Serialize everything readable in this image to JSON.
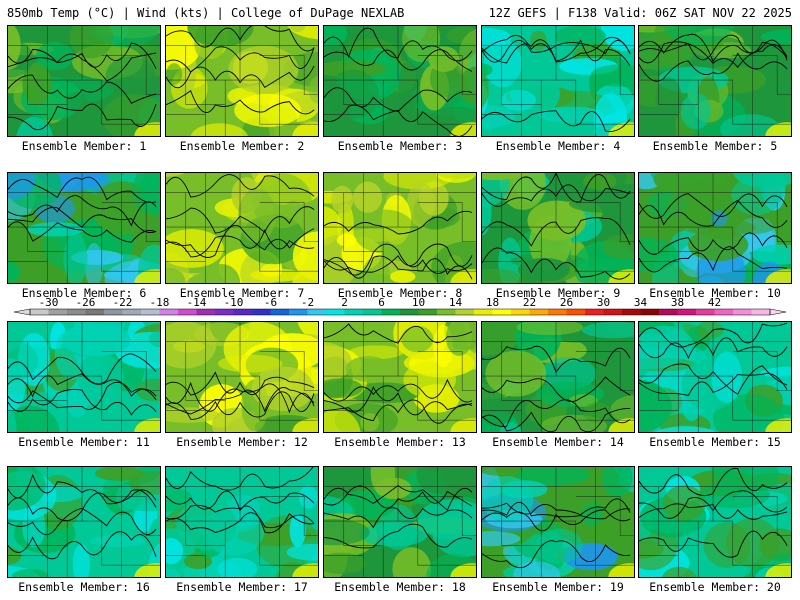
{
  "header": {
    "left": "850mb Temp (°C) | Wind (kts) | College of DuPage NEXLAB",
    "right": "12Z GEFS | F138 Valid: 06Z SAT NOV 22 2025"
  },
  "member_label_prefix": "Ensemble Member: ",
  "members": [
    {
      "id": 1,
      "label": "Ensemble Member: 1",
      "scheme": "green"
    },
    {
      "id": 2,
      "label": "Ensemble Member: 2",
      "scheme": "yellow"
    },
    {
      "id": 3,
      "label": "Ensemble Member: 3",
      "scheme": "green"
    },
    {
      "id": 4,
      "label": "Ensemble Member: 4",
      "scheme": "teal"
    },
    {
      "id": 5,
      "label": "Ensemble Member: 5",
      "scheme": "green"
    },
    {
      "id": 6,
      "label": "Ensemble Member: 6",
      "scheme": "cold"
    },
    {
      "id": 7,
      "label": "Ensemble Member: 7",
      "scheme": "yellow"
    },
    {
      "id": 8,
      "label": "Ensemble Member: 8",
      "scheme": "yellow"
    },
    {
      "id": 9,
      "label": "Ensemble Member: 9",
      "scheme": "green"
    },
    {
      "id": 10,
      "label": "Ensemble Member: 10",
      "scheme": "cold"
    },
    {
      "id": 11,
      "label": "Ensemble Member: 11",
      "scheme": "teal"
    },
    {
      "id": 12,
      "label": "Ensemble Member: 12",
      "scheme": "yellow"
    },
    {
      "id": 13,
      "label": "Ensemble Member: 13",
      "scheme": "yellow"
    },
    {
      "id": 14,
      "label": "Ensemble Member: 14",
      "scheme": "green"
    },
    {
      "id": 15,
      "label": "Ensemble Member: 15",
      "scheme": "teal"
    },
    {
      "id": 16,
      "label": "Ensemble Member: 16",
      "scheme": "teal"
    },
    {
      "id": 17,
      "label": "Ensemble Member: 17",
      "scheme": "teal"
    },
    {
      "id": 18,
      "label": "Ensemble Member: 18",
      "scheme": "green"
    },
    {
      "id": 19,
      "label": "Ensemble Member: 19",
      "scheme": "cold"
    },
    {
      "id": 20,
      "label": "Ensemble Member: 20",
      "scheme": "teal"
    }
  ],
  "colorbar": {
    "ticks": [
      "-30",
      "-26",
      "-22",
      "-18",
      "-14",
      "-10",
      "-6",
      "-2",
      "2",
      "6",
      "10",
      "14",
      "18",
      "22",
      "26",
      "30",
      "34",
      "38",
      "42"
    ],
    "colors": [
      "#c8c8c8",
      "#a0a0a0",
      "#8c8c8c",
      "#787878",
      "#8c96a0",
      "#a0aab4",
      "#b4bed2",
      "#d282e6",
      "#d24bd2",
      "#a02db4",
      "#7a2cc8",
      "#5a28c8",
      "#3232c8",
      "#1464dc",
      "#1e96f0",
      "#32c8f0",
      "#00e6e6",
      "#00d2b4",
      "#00c896",
      "#00b45a",
      "#1e963c",
      "#3ca028",
      "#78be28",
      "#b4d228",
      "#e6f000",
      "#ffff00",
      "#ffd700",
      "#ffaa00",
      "#ff7800",
      "#ff5000",
      "#f01e1e",
      "#d21414",
      "#aa0a0a",
      "#8c0505",
      "#b40a5a",
      "#d2147d",
      "#e63ca0",
      "#f064c8",
      "#f58cdc",
      "#fab4e6"
    ]
  },
  "schemes": {
    "green": [
      "#1e963c",
      "#3ca028",
      "#00b45a",
      "#78be28",
      "#00c896"
    ],
    "yellow": [
      "#78be28",
      "#b4d228",
      "#3ca028",
      "#e6f000",
      "#ffff00"
    ],
    "teal": [
      "#00c896",
      "#00b45a",
      "#00d2b4",
      "#3ca028",
      "#00e6e6"
    ],
    "cold": [
      "#3ca028",
      "#00b45a",
      "#00c896",
      "#00d2b4",
      "#32c8f0",
      "#1e96f0"
    ]
  }
}
